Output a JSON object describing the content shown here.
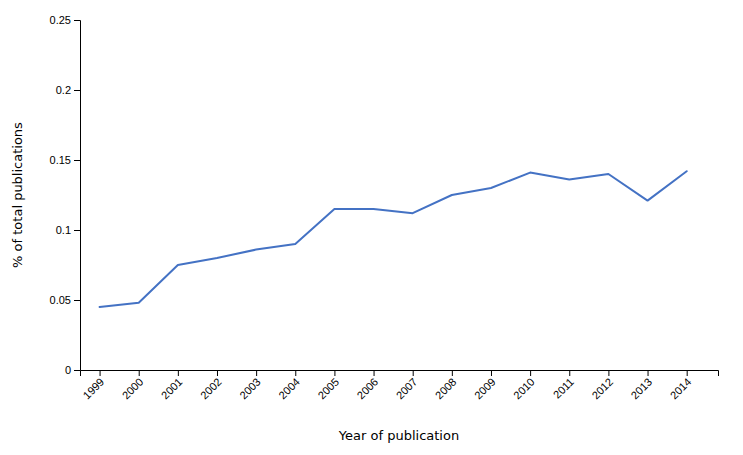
{
  "chart_data": {
    "type": "line",
    "x": [
      1999,
      2000,
      2001,
      2002,
      2003,
      2004,
      2005,
      2006,
      2007,
      2008,
      2009,
      2010,
      2011,
      2012,
      2013,
      2014
    ],
    "values": [
      0.045,
      0.048,
      0.075,
      0.08,
      0.086,
      0.09,
      0.115,
      0.115,
      0.112,
      0.125,
      0.13,
      0.141,
      0.136,
      0.14,
      0.121,
      0.142
    ],
    "color": "#4472C4",
    "xlabel": "Year of publication",
    "ylabel": "% of total publications",
    "xlim": [
      1998.5,
      2014.8
    ],
    "ylim": [
      0,
      0.25
    ],
    "xticks": [
      1999,
      2000,
      2001,
      2002,
      2003,
      2004,
      2005,
      2006,
      2007,
      2008,
      2009,
      2010,
      2011,
      2012,
      2013,
      2014
    ],
    "yticks": [
      0,
      0.05,
      0.1,
      0.15,
      0.2,
      0.25
    ],
    "grid": false
  }
}
